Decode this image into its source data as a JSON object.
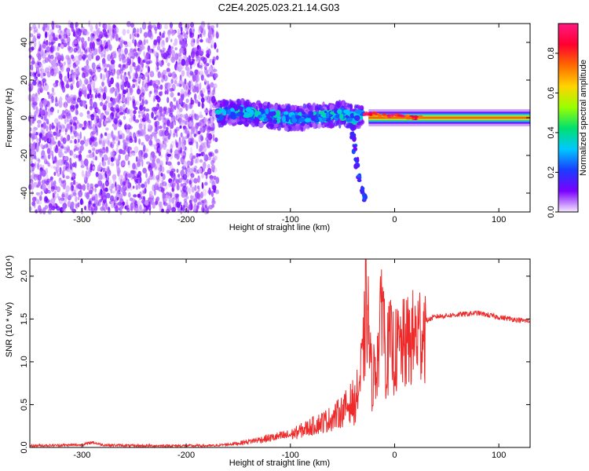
{
  "title": "C2E4.2025.023.21.14.G03",
  "chart_data": [
    {
      "type": "heatmap",
      "xlabel": "Height of straight line (km)",
      "ylabel": "Frequency (Hz)",
      "xlim": [
        -350,
        130
      ],
      "ylim": [
        -50,
        50
      ],
      "xticks": [
        -300,
        -200,
        -100,
        0,
        100
      ],
      "yticks": [
        -40,
        -20,
        0,
        20,
        40
      ],
      "colorbar": {
        "label": "Normalized spectral amplitude",
        "range": [
          0.0,
          0.95
        ],
        "ticks": [
          0.0,
          0.2,
          0.4,
          0.6,
          0.8
        ],
        "colormap": [
          "#f6e8ff",
          "#7a00ff",
          "#1a3cff",
          "#00c8ff",
          "#00e070",
          "#9aff00",
          "#ffd400",
          "#ff6a00",
          "#ff0030",
          "#ff1a80"
        ]
      },
      "regions": [
        {
          "x_range": [
            -350,
            -170
          ],
          "frequency_range": [
            -50,
            50
          ],
          "amplitude": 0.05
        },
        {
          "x_range": [
            -170,
            -30
          ],
          "frequency_range": [
            -5,
            5
          ],
          "amplitude": 0.25
        },
        {
          "x_range": [
            -30,
            130
          ],
          "frequency_range": [
            -2,
            2
          ],
          "amplitude": 0.75
        }
      ],
      "ridge": {
        "x": [
          -170,
          -150,
          -130,
          -110,
          -90,
          -70,
          -50,
          -40,
          -30,
          -20,
          -10,
          0,
          20,
          60,
          100,
          130
        ],
        "frequency": [
          2,
          3,
          2,
          0,
          0,
          1,
          2,
          0,
          2,
          2,
          1,
          1,
          0,
          0,
          0,
          0
        ]
      },
      "tail": {
        "x": [
          -40,
          -38,
          -36,
          -34,
          -31,
          -29
        ],
        "frequency": [
          -10,
          -16,
          -24,
          -32,
          -38,
          -42
        ]
      }
    },
    {
      "type": "line",
      "xlabel": "Height of straight line (km)",
      "ylabel": "SNR (10 * v/v)",
      "scale_label": "(x10⁴)",
      "xlim": [
        -350,
        130
      ],
      "ylim": [
        0.0,
        2.2
      ],
      "xticks": [
        -300,
        -200,
        -100,
        0,
        100
      ],
      "yticks": [
        "0.0",
        "0.5",
        "1.0",
        "1.5",
        "2.0"
      ],
      "series_color": "#ee2a2a",
      "x": [
        -350,
        -300,
        -290,
        -280,
        -250,
        -200,
        -170,
        -150,
        -120,
        -100,
        -80,
        -60,
        -50,
        -40,
        -34,
        -30,
        -27,
        -22,
        -18,
        -14,
        -12,
        -10,
        -8,
        -5,
        -2,
        0,
        5,
        10,
        15,
        20,
        25,
        30,
        40,
        60,
        80,
        100,
        130
      ],
      "y": [
        0.02,
        0.03,
        0.06,
        0.03,
        0.02,
        0.02,
        0.02,
        0.04,
        0.09,
        0.12,
        0.2,
        0.28,
        0.35,
        0.45,
        0.75,
        1.1,
        1.9,
        0.8,
        1.0,
        1.3,
        2.2,
        1.4,
        1.05,
        1.25,
        1.2,
        1.15,
        1.22,
        1.25,
        1.3,
        1.35,
        1.42,
        1.48,
        1.53,
        1.55,
        1.57,
        1.52,
        1.47
      ]
    }
  ]
}
